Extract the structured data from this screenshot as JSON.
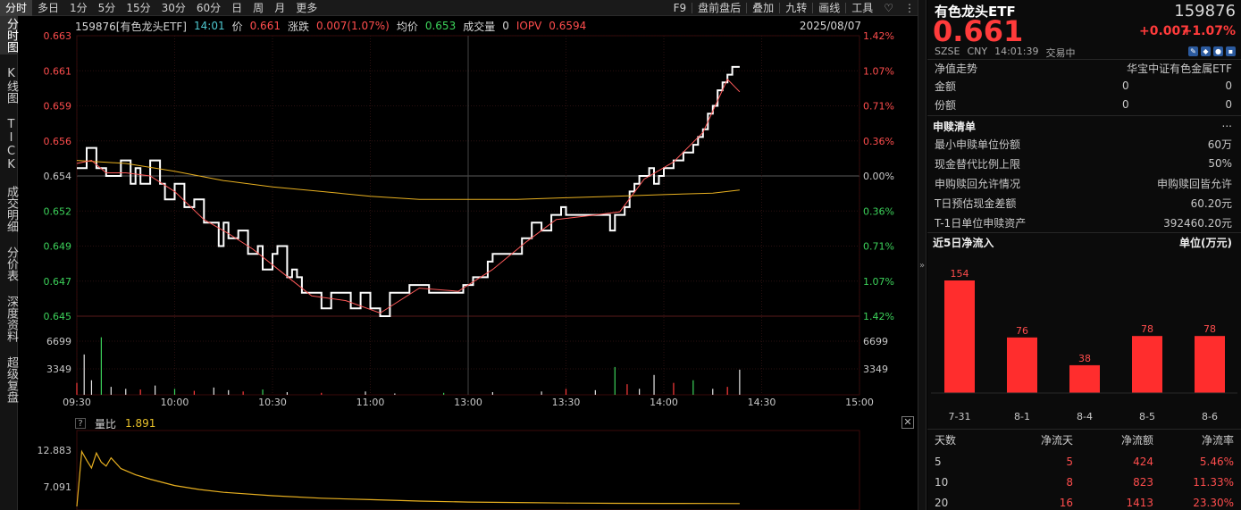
{
  "toolbar": {
    "tabs": [
      "分时",
      "多日",
      "1分",
      "5分",
      "15分",
      "30分",
      "60分",
      "日",
      "周",
      "月",
      "更多"
    ],
    "right": [
      "F9",
      "盘前盘后",
      "叠加",
      "九转",
      "画线",
      "工具"
    ],
    "heart_icon": "heart-icon",
    "more_icon": "more-vertical-icon"
  },
  "side_tabs": [
    "分时图",
    "K线图",
    "TICK",
    "成交明细",
    "分价表",
    "深度资料",
    "超级复盘"
  ],
  "info": {
    "code_name": "159876[有色龙头ETF]",
    "time": "14:01",
    "price_label": "价",
    "price": "0.661",
    "change_label": "涨跌",
    "change": "0.007(1.07%)",
    "avg_label": "均价",
    "avg": "0.653",
    "volume_label": "成交量",
    "volume": "0",
    "iopv_label": "IOPV",
    "iopv": "0.6594",
    "date": "2025/08/07"
  },
  "chart_data": [
    {
      "type": "line",
      "price_axis_ticks": [
        "0.663",
        "0.661",
        "0.659",
        "0.656",
        "0.654",
        "0.652",
        "0.649",
        "0.647",
        "0.645"
      ],
      "pct_axis_ticks": [
        "1.42%",
        "1.07%",
        "0.71%",
        "0.36%",
        "0.00%",
        "0.36%",
        "0.71%",
        "1.07%",
        "1.42%"
      ],
      "volume_axis_ticks": [
        "6699",
        "3349"
      ],
      "time_ticks": [
        "09:30",
        "10:00",
        "10:30",
        "11:00",
        "13:00",
        "13:30",
        "14:00",
        "14:30",
        "15:00"
      ],
      "ylim": [
        0.645,
        0.663
      ],
      "prev_close": 0.654,
      "series": [
        {
          "name": "价",
          "color": "#ffffff",
          "x": [
            0,
            4,
            8,
            12,
            16,
            18,
            22,
            24,
            26,
            30,
            34,
            36,
            40,
            44,
            46,
            48,
            52,
            56,
            58,
            60,
            62,
            66,
            70,
            74,
            76,
            80,
            82,
            86,
            88,
            90,
            92,
            96,
            100,
            104,
            108,
            112,
            116,
            120,
            124,
            128,
            132,
            136,
            140,
            144,
            148,
            150,
            154,
            158,
            162,
            164,
            168,
            170,
            174,
            178,
            182,
            186,
            190,
            194,
            196,
            198,
            200,
            204,
            208,
            212,
            216,
            218,
            220,
            224,
            226,
            228,
            230,
            232,
            234,
            236,
            238,
            240,
            242,
            244,
            246,
            248,
            250,
            252,
            254,
            256,
            258,
            260,
            262,
            264,
            266,
            268,
            270,
            271
          ],
          "values": [
            0.6545,
            0.6558,
            0.6545,
            0.654,
            0.654,
            0.655,
            0.6535,
            0.6545,
            0.6535,
            0.655,
            0.6535,
            0.6525,
            0.6535,
            0.652,
            0.652,
            0.6525,
            0.651,
            0.651,
            0.6495,
            0.651,
            0.65,
            0.6505,
            0.649,
            0.6495,
            0.648,
            0.649,
            0.6495,
            0.6475,
            0.648,
            0.6475,
            0.6465,
            0.6465,
            0.6455,
            0.6465,
            0.6465,
            0.6455,
            0.6465,
            0.6455,
            0.645,
            0.6465,
            0.6465,
            0.647,
            0.647,
            0.6465,
            0.6465,
            0.6465,
            0.6465,
            0.647,
            0.6475,
            0.6475,
            0.6485,
            0.649,
            0.649,
            0.649,
            0.65,
            0.651,
            0.6505,
            0.6515,
            0.6515,
            0.652,
            0.6515,
            0.6515,
            0.6515,
            0.6515,
            0.6515,
            0.6505,
            0.6515,
            0.652,
            0.653,
            0.6535,
            0.654,
            0.654,
            0.6545,
            0.6535,
            0.654,
            0.6545,
            0.6545,
            0.655,
            0.655,
            0.6555,
            0.6555,
            0.656,
            0.6565,
            0.657,
            0.658,
            0.6585,
            0.6595,
            0.66,
            0.6605,
            0.661,
            0.661,
            0.661
          ]
        },
        {
          "name": "均价",
          "color": "#e8b020",
          "x": [
            0,
            20,
            40,
            60,
            80,
            100,
            120,
            140,
            160,
            180,
            200,
            220,
            240,
            260,
            271
          ],
          "values": [
            0.655,
            0.6548,
            0.6543,
            0.6537,
            0.6533,
            0.653,
            0.6527,
            0.6525,
            0.6525,
            0.6525,
            0.6526,
            0.6527,
            0.6528,
            0.6529,
            0.6531
          ]
        },
        {
          "name": "IOPV",
          "color": "#ff5a5a",
          "x": [
            0,
            6,
            12,
            20,
            30,
            40,
            52,
            62,
            72,
            84,
            96,
            110,
            124,
            140,
            156,
            170,
            184,
            196,
            212,
            222,
            232,
            244,
            256,
            266,
            271
          ],
          "values": [
            0.6548,
            0.655,
            0.6542,
            0.6542,
            0.654,
            0.653,
            0.6512,
            0.6503,
            0.6493,
            0.6478,
            0.6463,
            0.646,
            0.6452,
            0.6468,
            0.6466,
            0.648,
            0.6498,
            0.6512,
            0.6515,
            0.6517,
            0.6538,
            0.6549,
            0.6568,
            0.6602,
            0.6594
          ]
        }
      ],
      "volume": {
        "x": [
          0,
          3,
          6,
          10,
          14,
          20,
          26,
          32,
          40,
          48,
          56,
          62,
          68,
          76,
          86,
          100,
          118,
          130,
          150,
          170,
          190,
          200,
          212,
          220,
          225,
          230,
          236,
          244,
          252,
          260,
          266,
          271
        ],
        "values": [
          1800,
          6100,
          2200,
          8700,
          1200,
          900,
          800,
          1400,
          900,
          600,
          1100,
          700,
          500,
          800,
          400,
          300,
          500,
          200,
          300,
          400,
          500,
          900,
          700,
          4200,
          1600,
          900,
          3000,
          1800,
          2200,
          900,
          1200,
          3800
        ]
      }
    },
    {
      "type": "line",
      "name": "量比",
      "label": "量比",
      "value": "1.891",
      "y_ticks": [
        "12.883",
        "7.091"
      ],
      "ylim": [
        1.3,
        12.883
      ],
      "x": [
        0,
        2,
        4,
        6,
        8,
        10,
        12,
        14,
        18,
        24,
        30,
        40,
        50,
        60,
        80,
        100,
        120,
        140,
        160,
        180,
        200,
        220,
        240,
        260,
        271
      ],
      "values": [
        1.3,
        12.6,
        10.8,
        9.2,
        12.3,
        10.4,
        9.6,
        11.3,
        9.1,
        7.8,
        6.9,
        5.6,
        4.8,
        4.2,
        3.5,
        3.0,
        2.7,
        2.4,
        2.2,
        2.1,
        2.0,
        1.95,
        1.92,
        1.9,
        1.891
      ]
    },
    {
      "type": "bar",
      "title": "近5日净流入",
      "unit": "单位(万元)",
      "categories": [
        "7-31",
        "8-1",
        "8-4",
        "8-5",
        "8-6"
      ],
      "values": [
        154,
        76,
        38,
        78,
        78
      ]
    }
  ],
  "panel": {
    "name": "有色龙头ETF",
    "code": "159876",
    "price": "0.661",
    "change": "+0.007",
    "change_pct": "+1.07%",
    "exchange": "SZSE",
    "currency": "CNY",
    "time": "14:01:39",
    "status": "交易中",
    "nav_trend_label": "净值走势",
    "index_name": "华宝中证有色金属ETF",
    "amount_label": "金额",
    "amount_1": "0",
    "amount_2": "0",
    "share_label": "份额",
    "share_1": "0",
    "share_2": "0",
    "subs_title": "申赎清单",
    "subs_more": "...",
    "min_unit_label": "最小申赎单位份额",
    "min_unit": "60万",
    "cash_cap_label": "现金替代比例上限",
    "cash_cap": "50%",
    "permit_label": "申购赎回允许情况",
    "permit": "申购赎回皆允许",
    "est_cash_label": "T日预估现金差额",
    "est_cash": "60.20元",
    "nav_unit_label": "T-1日单位申赎资产",
    "nav_unit": "392460.20元",
    "table_headers": [
      "天数",
      "净流天",
      "净流额",
      "净流率"
    ],
    "table_rows": [
      [
        "5",
        "5",
        "424",
        "5.46%"
      ],
      [
        "10",
        "8",
        "823",
        "11.33%"
      ],
      [
        "20",
        "16",
        "1413",
        "23.30%"
      ]
    ]
  },
  "colors": {
    "up": "#ff3b3b",
    "down": "#3cd25a",
    "price_line": "#ffffff",
    "avg_line": "#e8b020",
    "iopv_line": "#ff5a5a",
    "bar": "#ff2d2d"
  }
}
